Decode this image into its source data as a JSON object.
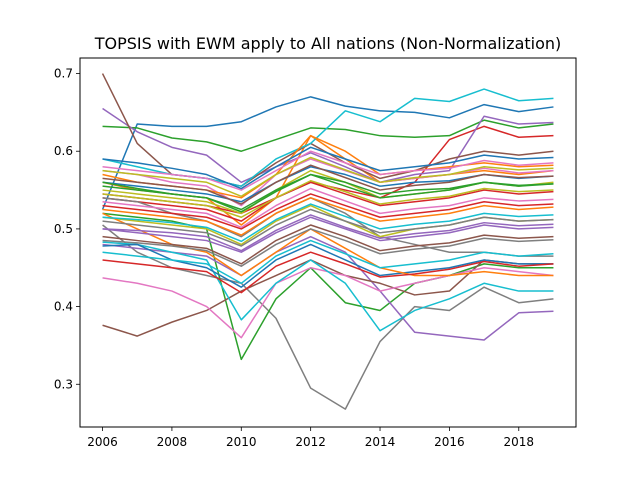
{
  "chart_data": {
    "type": "line",
    "title": "TOPSIS with EWM apply to All nations (Non-Normalization)",
    "xlabel": "",
    "ylabel": "",
    "xlim": [
      2005.35,
      2019.65
    ],
    "ylim": [
      0.245,
      0.72
    ],
    "x_ticks": [
      2006,
      2008,
      2010,
      2012,
      2014,
      2016,
      2018
    ],
    "y_ticks": [
      0.3,
      0.4,
      0.5,
      0.6,
      0.7
    ],
    "grid": false,
    "legend": "none",
    "x": [
      2006,
      2007,
      2008,
      2009,
      2010,
      2011,
      2012,
      2013,
      2014,
      2015,
      2016,
      2017,
      2018,
      2019
    ],
    "palette": [
      "#1f77b4",
      "#ff7f0e",
      "#2ca02c",
      "#d62728",
      "#9467bd",
      "#8c564b",
      "#e377c2",
      "#7f7f7f",
      "#bcbd22",
      "#17becf"
    ],
    "series": [
      {
        "values": [
          0.525,
          0.635,
          0.632,
          0.632,
          0.638,
          0.657,
          0.67,
          0.658,
          0.652,
          0.65,
          0.643,
          0.66,
          0.651,
          0.657
        ]
      },
      {
        "values": [
          0.56,
          0.55,
          0.545,
          0.54,
          0.505,
          0.54,
          0.62,
          0.59,
          0.56,
          0.565,
          0.57,
          0.575,
          0.57,
          0.575
        ]
      },
      {
        "values": [
          0.632,
          0.63,
          0.617,
          0.612,
          0.6,
          0.615,
          0.63,
          0.628,
          0.62,
          0.618,
          0.62,
          0.64,
          0.63,
          0.635
        ]
      },
      {
        "values": [
          0.545,
          0.54,
          0.535,
          0.53,
          0.52,
          0.54,
          0.56,
          0.55,
          0.54,
          0.56,
          0.615,
          0.632,
          0.618,
          0.62
        ]
      },
      {
        "values": [
          0.655,
          0.625,
          0.605,
          0.595,
          0.56,
          0.58,
          0.598,
          0.58,
          0.56,
          0.57,
          0.575,
          0.645,
          0.635,
          0.637
        ]
      },
      {
        "values": [
          0.7,
          0.61,
          0.57,
          0.565,
          0.555,
          0.585,
          0.61,
          0.585,
          0.565,
          0.575,
          0.59,
          0.6,
          0.595,
          0.6
        ]
      },
      {
        "values": [
          0.575,
          0.57,
          0.56,
          0.555,
          0.53,
          0.57,
          0.59,
          0.575,
          0.56,
          0.565,
          0.57,
          0.578,
          0.572,
          0.575
        ]
      },
      {
        "values": [
          0.505,
          0.47,
          0.45,
          0.44,
          0.43,
          0.385,
          0.295,
          0.268,
          0.355,
          0.4,
          0.395,
          0.425,
          0.405,
          0.41
        ]
      },
      {
        "values": [
          0.55,
          0.545,
          0.54,
          0.535,
          0.52,
          0.55,
          0.575,
          0.56,
          0.54,
          0.545,
          0.55,
          0.56,
          0.555,
          0.56
        ]
      },
      {
        "values": [
          0.59,
          0.58,
          0.57,
          0.565,
          0.555,
          0.59,
          0.61,
          0.652,
          0.638,
          0.668,
          0.664,
          0.68,
          0.665,
          0.668
        ]
      },
      {
        "values": [
          0.56,
          0.555,
          0.55,
          0.545,
          0.535,
          0.56,
          0.58,
          0.57,
          0.555,
          0.56,
          0.562,
          0.57,
          0.565,
          0.568
        ]
      },
      {
        "values": [
          0.57,
          0.56,
          0.555,
          0.55,
          0.54,
          0.57,
          0.62,
          0.6,
          0.57,
          0.575,
          0.58,
          0.585,
          0.58,
          0.582
        ]
      },
      {
        "values": [
          0.52,
          0.515,
          0.51,
          0.5,
          0.332,
          0.41,
          0.45,
          0.405,
          0.395,
          0.43,
          0.44,
          0.455,
          0.45,
          0.45
        ]
      },
      {
        "values": [
          0.54,
          0.535,
          0.53,
          0.525,
          0.51,
          0.54,
          0.56,
          0.545,
          0.53,
          0.535,
          0.54,
          0.55,
          0.545,
          0.548
        ]
      },
      {
        "values": [
          0.48,
          0.475,
          0.47,
          0.465,
          0.44,
          0.47,
          0.49,
          0.47,
          0.42,
          0.367,
          0.362,
          0.357,
          0.392,
          0.394
        ]
      },
      {
        "values": [
          0.376,
          0.362,
          0.38,
          0.395,
          0.42,
          0.44,
          0.46,
          0.44,
          0.43,
          0.415,
          0.42,
          0.46,
          0.455,
          0.455
        ]
      },
      {
        "values": [
          0.437,
          0.43,
          0.42,
          0.4,
          0.36,
          0.43,
          0.45,
          0.44,
          0.42,
          0.43,
          0.44,
          0.45,
          0.445,
          0.44
        ]
      },
      {
        "values": [
          0.54,
          0.535,
          0.52,
          0.51,
          0.49,
          0.52,
          0.54,
          0.52,
          0.49,
          0.48,
          0.47,
          0.47,
          0.465,
          0.465
        ]
      },
      {
        "values": [
          0.515,
          0.51,
          0.505,
          0.5,
          0.48,
          0.51,
          0.53,
          0.51,
          0.49,
          0.5,
          0.505,
          0.515,
          0.51,
          0.512
        ]
      },
      {
        "values": [
          0.483,
          0.48,
          0.47,
          0.46,
          0.383,
          0.43,
          0.46,
          0.43,
          0.369,
          0.395,
          0.41,
          0.43,
          0.42,
          0.42
        ]
      },
      {
        "values": [
          0.478,
          0.48,
          0.46,
          0.45,
          0.425,
          0.46,
          0.48,
          0.46,
          0.44,
          0.445,
          0.45,
          0.46,
          0.455,
          0.455
        ]
      },
      {
        "values": [
          0.52,
          0.5,
          0.48,
          0.47,
          0.44,
          0.47,
          0.5,
          0.475,
          0.45,
          0.44,
          0.44,
          0.445,
          0.44,
          0.44
        ]
      },
      {
        "values": [
          0.56,
          0.552,
          0.545,
          0.54,
          0.525,
          0.55,
          0.57,
          0.56,
          0.545,
          0.55,
          0.552,
          0.56,
          0.556,
          0.558
        ]
      },
      {
        "values": [
          0.53,
          0.525,
          0.52,
          0.515,
          0.5,
          0.525,
          0.545,
          0.53,
          0.515,
          0.52,
          0.525,
          0.535,
          0.53,
          0.532
        ]
      },
      {
        "values": [
          0.5,
          0.495,
          0.49,
          0.485,
          0.47,
          0.495,
          0.515,
          0.5,
          0.485,
          0.49,
          0.495,
          0.505,
          0.5,
          0.502
        ]
      },
      {
        "values": [
          0.49,
          0.485,
          0.48,
          0.475,
          0.455,
          0.485,
          0.505,
          0.49,
          0.472,
          0.478,
          0.482,
          0.492,
          0.488,
          0.49
        ]
      },
      {
        "values": [
          0.58,
          0.575,
          0.57,
          0.565,
          0.55,
          0.575,
          0.6,
          0.585,
          0.57,
          0.575,
          0.578,
          0.588,
          0.582,
          0.585
        ]
      },
      {
        "values": [
          0.51,
          0.505,
          0.5,
          0.495,
          0.478,
          0.505,
          0.525,
          0.51,
          0.495,
          0.5,
          0.505,
          0.515,
          0.51,
          0.512
        ]
      },
      {
        "values": [
          0.545,
          0.54,
          0.535,
          0.53,
          0.515,
          0.54,
          0.562,
          0.548,
          0.532,
          0.538,
          0.542,
          0.552,
          0.548,
          0.55
        ]
      },
      {
        "values": [
          0.47,
          0.465,
          0.46,
          0.455,
          0.43,
          0.465,
          0.485,
          0.468,
          0.45,
          0.455,
          0.46,
          0.47,
          0.465,
          0.468
        ]
      },
      {
        "values": [
          0.59,
          0.585,
          0.578,
          0.57,
          0.552,
          0.58,
          0.605,
          0.59,
          0.575,
          0.58,
          0.585,
          0.595,
          0.59,
          0.592
        ]
      },
      {
        "values": [
          0.525,
          0.52,
          0.515,
          0.51,
          0.492,
          0.52,
          0.54,
          0.525,
          0.51,
          0.515,
          0.52,
          0.53,
          0.525,
          0.528
        ]
      },
      {
        "values": [
          0.555,
          0.55,
          0.545,
          0.54,
          0.522,
          0.548,
          0.57,
          0.555,
          0.54,
          0.545,
          0.55,
          0.56,
          0.555,
          0.558
        ]
      },
      {
        "values": [
          0.46,
          0.455,
          0.45,
          0.445,
          0.418,
          0.452,
          0.47,
          0.455,
          0.438,
          0.442,
          0.448,
          0.458,
          0.452,
          0.455
        ]
      },
      {
        "values": [
          0.5,
          0.498,
          0.495,
          0.49,
          0.472,
          0.498,
          0.518,
          0.502,
          0.488,
          0.494,
          0.498,
          0.508,
          0.504,
          0.506
        ]
      },
      {
        "values": [
          0.565,
          0.56,
          0.555,
          0.55,
          0.532,
          0.56,
          0.582,
          0.566,
          0.55,
          0.556,
          0.56,
          0.57,
          0.566,
          0.568
        ]
      },
      {
        "values": [
          0.535,
          0.53,
          0.525,
          0.52,
          0.502,
          0.53,
          0.552,
          0.536,
          0.52,
          0.526,
          0.53,
          0.54,
          0.536,
          0.538
        ]
      },
      {
        "values": [
          0.485,
          0.482,
          0.478,
          0.472,
          0.452,
          0.48,
          0.5,
          0.485,
          0.468,
          0.474,
          0.478,
          0.488,
          0.484,
          0.486
        ]
      },
      {
        "values": [
          0.575,
          0.57,
          0.565,
          0.56,
          0.542,
          0.57,
          0.592,
          0.576,
          0.56,
          0.566,
          0.57,
          0.58,
          0.576,
          0.578
        ]
      },
      {
        "values": [
          0.515,
          0.512,
          0.508,
          0.502,
          0.484,
          0.512,
          0.532,
          0.516,
          0.5,
          0.506,
          0.51,
          0.52,
          0.516,
          0.518
        ]
      }
    ]
  }
}
